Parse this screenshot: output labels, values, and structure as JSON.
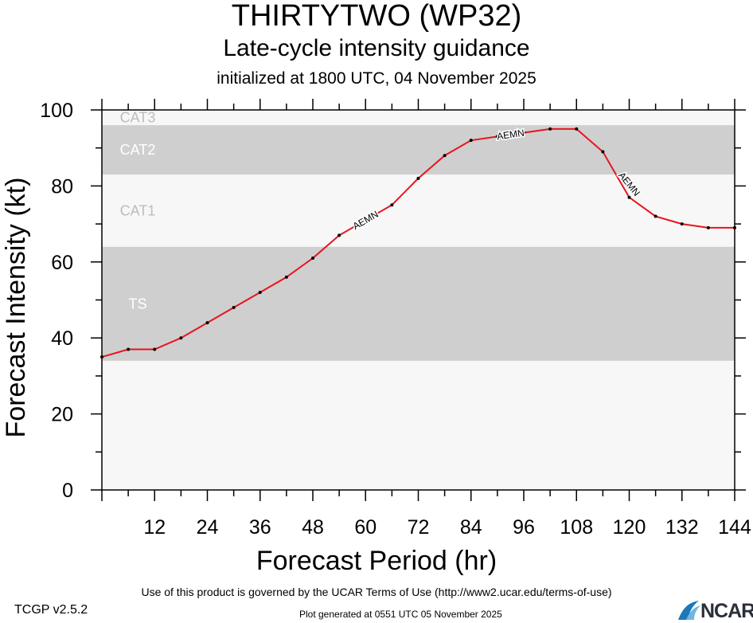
{
  "header": {
    "title": "THIRTYTWO (WP32)",
    "subtitle": "Late-cycle intensity guidance",
    "initialized": "initialized at 1800 UTC, 04 November 2025"
  },
  "footer": {
    "terms": "Use of this product is governed by the UCAR Terms of Use (http://www2.ucar.edu/terms-of-use)",
    "version": "TCGP v2.5.2",
    "generated": "Plot generated at 0551 UTC   05 November 2025",
    "logo": "NCAR"
  },
  "chart_data": {
    "type": "line",
    "xlabel": "Forecast Period (hr)",
    "ylabel": "Forecast Intensity (kt)",
    "xlim": [
      0,
      144
    ],
    "ylim": [
      0,
      100
    ],
    "xticks": [
      12,
      24,
      36,
      48,
      60,
      72,
      84,
      96,
      108,
      120,
      132,
      144
    ],
    "yticks": [
      0,
      20,
      40,
      60,
      80,
      100
    ],
    "bands": [
      {
        "label": "TS",
        "from": 34,
        "to": 64
      },
      {
        "label": "CAT1",
        "from": 64,
        "to": 83
      },
      {
        "label": "CAT2",
        "from": 83,
        "to": 96
      },
      {
        "label": "CAT3",
        "from": 96,
        "to": 100
      }
    ],
    "series": [
      {
        "name": "AEMN",
        "color": "#e8141d",
        "x": [
          0,
          6,
          12,
          18,
          24,
          30,
          36,
          42,
          48,
          54,
          60,
          66,
          72,
          78,
          84,
          90,
          96,
          102,
          108,
          114,
          120,
          126,
          132,
          138,
          144
        ],
        "y": [
          35,
          37,
          37,
          40,
          44,
          48,
          52,
          56,
          61,
          67,
          71,
          75,
          82,
          88,
          92,
          93,
          94,
          95,
          95,
          89,
          77,
          72,
          70,
          69,
          69
        ]
      }
    ]
  }
}
